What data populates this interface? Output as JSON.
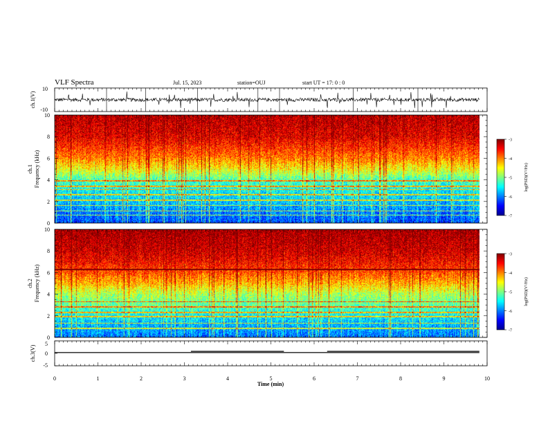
{
  "header": {
    "title": "VLF Spectra",
    "date": "Jul. 15, 2023",
    "station": "station=OUJ",
    "start": "start UT =  17: 0  : 0"
  },
  "chart_data": [
    {
      "type": "line",
      "name": "ch1-waveform",
      "ylabel": "ch.1(V)",
      "ylim": [
        -10,
        10
      ],
      "yticks": [
        "10",
        "-10"
      ],
      "x_unit": "min",
      "xlim": [
        0,
        10
      ],
      "data_end_min": 9.82,
      "baseline": 0,
      "noise_amplitude_approx": 2,
      "spikes_approx": [
        4.7,
        5.2,
        3.3,
        6.9,
        8.4,
        1.2,
        2.1
      ]
    },
    {
      "type": "heatmap",
      "name": "ch1-spectrogram",
      "ylabel_line1": "ch.1",
      "ylabel_line2": "Frequency (kHz)",
      "ylim": [
        0,
        10
      ],
      "yticks": [
        0,
        2,
        4,
        6,
        8,
        10
      ],
      "xlim": [
        0,
        10
      ],
      "data_end_min": 9.82,
      "colorbar": {
        "label": "log(PSD)(V²/Hz)",
        "range": [
          -7,
          -3
        ],
        "ticks": [
          "-3",
          "-4",
          "-5",
          "-6",
          "-7"
        ],
        "colormap": "jet"
      },
      "level_profile_kHz": [
        [
          0,
          -6.2
        ],
        [
          1,
          -6.0
        ],
        [
          2,
          -5.7
        ],
        [
          3,
          -5.5
        ],
        [
          4,
          -5.2
        ],
        [
          5,
          -4.5
        ],
        [
          6,
          -4.0
        ],
        [
          7,
          -3.7
        ],
        [
          8,
          -3.4
        ],
        [
          10,
          -3.2
        ]
      ],
      "horizontal_lines_kHz": [
        0.7,
        1.1,
        1.6,
        2.1,
        2.6,
        3.1,
        3.4,
        3.9
      ]
    },
    {
      "type": "heatmap",
      "name": "ch2-spectrogram",
      "ylabel_line1": "ch.2",
      "ylabel_line2": "Frequency (kHz)",
      "ylim": [
        0,
        10
      ],
      "yticks": [
        0,
        2,
        4,
        6,
        8,
        10
      ],
      "xlim": [
        0,
        10
      ],
      "data_end_min": 9.82,
      "colorbar": {
        "label": "log(PSD)(V²/Hz)",
        "range": [
          -7,
          -3
        ],
        "ticks": [
          "-3",
          "-4",
          "-5",
          "-6",
          "-7"
        ],
        "colormap": "jet"
      },
      "level_profile_kHz": [
        [
          0,
          -6.0
        ],
        [
          1,
          -5.8
        ],
        [
          2,
          -5.5
        ],
        [
          3,
          -5.1
        ],
        [
          4,
          -4.8
        ],
        [
          5,
          -4.2
        ],
        [
          6,
          -3.8
        ],
        [
          7,
          -3.5
        ],
        [
          8,
          -3.3
        ],
        [
          10,
          -3.1
        ]
      ],
      "horizontal_lines_kHz": [
        0.8,
        1.3,
        1.9,
        2.3,
        2.8,
        3.3,
        6.3
      ]
    },
    {
      "type": "line",
      "name": "ch3-signal",
      "ylabel": "ch.3(V)",
      "ylim": [
        -5,
        5
      ],
      "yticks": [
        "5",
        "0",
        "-5"
      ],
      "xlim": [
        0,
        10
      ],
      "xticks": [
        0,
        1,
        2,
        3,
        4,
        5,
        6,
        7,
        8,
        9,
        10
      ],
      "xlabel": "Time (min)",
      "data_end_min": 9.82,
      "baseline_V": 0.3,
      "high_segments": [
        [
          3.15,
          5.3,
          0.8
        ],
        [
          6.3,
          9.82,
          0.8
        ]
      ]
    }
  ]
}
